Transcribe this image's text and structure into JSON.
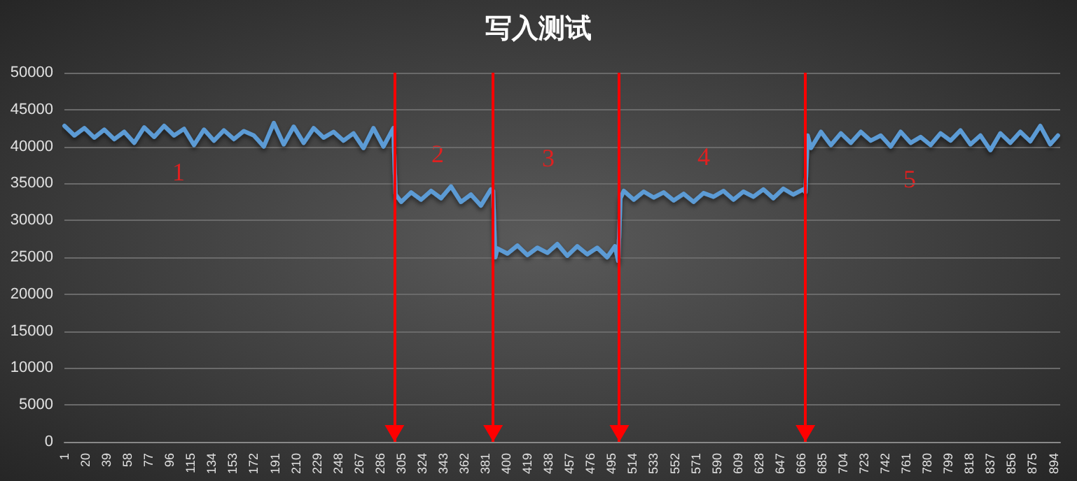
{
  "chart_data": {
    "type": "line",
    "title": "写入测试",
    "xlim": [
      1,
      900
    ],
    "xticks": [
      1,
      20,
      39,
      58,
      77,
      96,
      115,
      134,
      153,
      172,
      191,
      210,
      229,
      248,
      267,
      286,
      305,
      324,
      343,
      362,
      381,
      400,
      419,
      438,
      457,
      476,
      495,
      514,
      533,
      552,
      571,
      590,
      609,
      628,
      647,
      666,
      685,
      704,
      723,
      742,
      761,
      780,
      799,
      818,
      837,
      856,
      875,
      894
    ],
    "ylim": [
      0,
      50000
    ],
    "yticks": [
      0,
      5000,
      10000,
      15000,
      20000,
      25000,
      30000,
      35000,
      40000,
      45000,
      50000
    ],
    "grid": "y",
    "marker": "none",
    "line_style": "solid",
    "series": [
      {
        "color": "#5b9bd5",
        "x": [
          1,
          10,
          19,
          28,
          37,
          46,
          55,
          64,
          73,
          82,
          91,
          100,
          109,
          118,
          127,
          136,
          145,
          154,
          163,
          172,
          181,
          190,
          199,
          208,
          217,
          226,
          235,
          244,
          253,
          262,
          271,
          280,
          289,
          298,
          300,
          305,
          314,
          323,
          332,
          341,
          350,
          359,
          368,
          377,
          386,
          388,
          390,
          392,
          401,
          410,
          419,
          428,
          437,
          446,
          455,
          464,
          473,
          482,
          491,
          498,
          501,
          503,
          506,
          515,
          524,
          533,
          542,
          551,
          560,
          569,
          578,
          587,
          596,
          605,
          614,
          623,
          632,
          641,
          650,
          659,
          668,
          670,
          672,
          675,
          684,
          693,
          702,
          711,
          720,
          729,
          738,
          747,
          756,
          765,
          774,
          783,
          792,
          801,
          810,
          819,
          828,
          837,
          846,
          855,
          864,
          873,
          882,
          891,
          898
        ],
        "values": [
          42800,
          41500,
          42500,
          41200,
          42300,
          41000,
          42000,
          40500,
          42600,
          41300,
          42800,
          41500,
          42400,
          40200,
          42300,
          40800,
          42200,
          41000,
          42100,
          41500,
          40000,
          43200,
          40300,
          42700,
          40500,
          42500,
          41200,
          42000,
          40800,
          41800,
          39800,
          42500,
          40000,
          42500,
          33500,
          32500,
          33800,
          32800,
          34000,
          33000,
          34600,
          32500,
          33500,
          32000,
          34200,
          34000,
          25000,
          26200,
          25500,
          26600,
          25300,
          26300,
          25600,
          26800,
          25200,
          26500,
          25400,
          26300,
          25000,
          26500,
          24500,
          33000,
          34000,
          32800,
          33900,
          33100,
          33800,
          32700,
          33600,
          32500,
          33700,
          33200,
          34000,
          32800,
          33900,
          33200,
          34200,
          33000,
          34300,
          33500,
          34200,
          33800,
          41500,
          39800,
          42000,
          40200,
          41800,
          40500,
          42000,
          40800,
          41500,
          40000,
          42000,
          40500,
          41300,
          40200,
          41800,
          40800,
          42200,
          40300,
          41500,
          39500,
          41800,
          40500,
          42000,
          40700,
          42800,
          40300,
          41500
        ]
      }
    ],
    "ref_lines": [
      {
        "axis": "x",
        "value": 299,
        "color": "#ff0000"
      },
      {
        "axis": "x",
        "value": 388,
        "color": "#ff0000"
      },
      {
        "axis": "x",
        "value": 502,
        "color": "#ff0000"
      },
      {
        "axis": "x",
        "value": 670,
        "color": "#ff0000"
      }
    ],
    "annotations": [
      "1",
      "2",
      "3",
      "4",
      "5"
    ]
  }
}
